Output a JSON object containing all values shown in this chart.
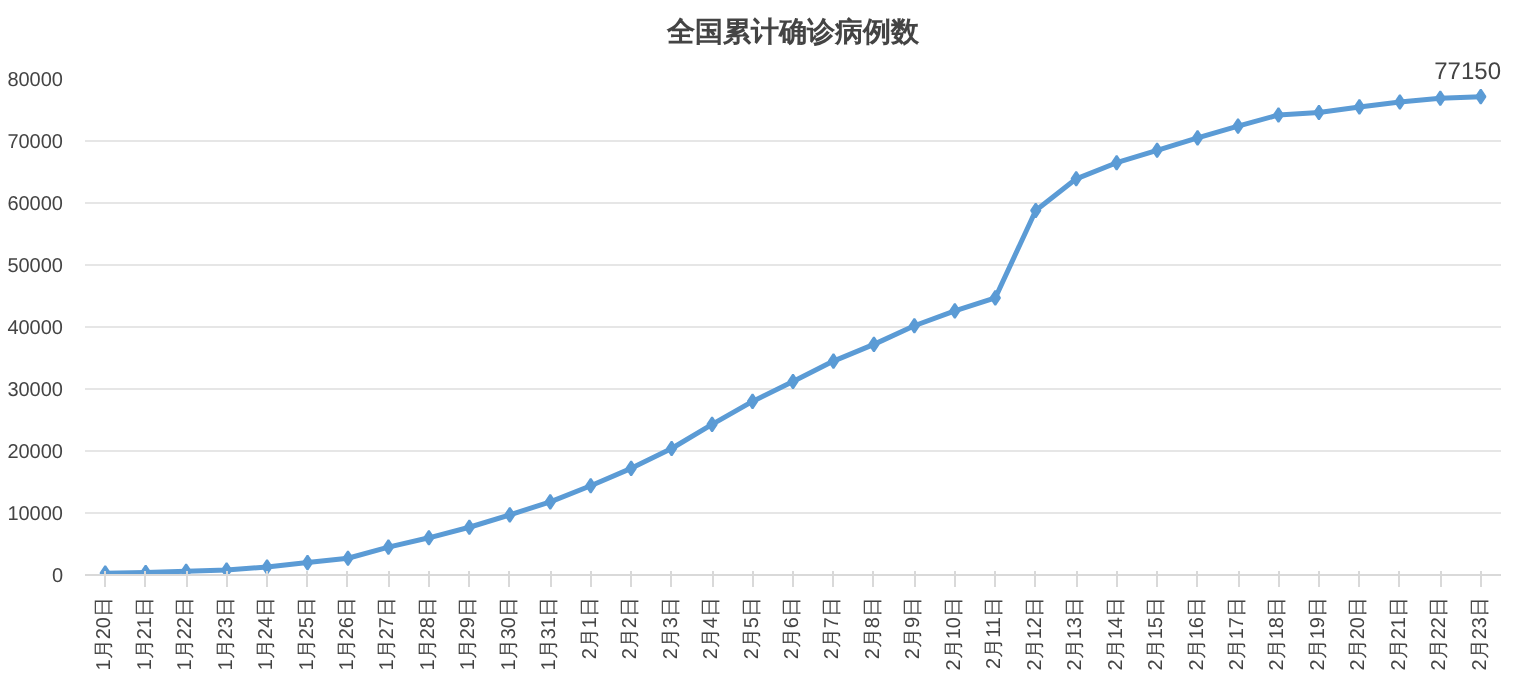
{
  "chart_data": {
    "type": "line",
    "title": "全国累计确诊病例数",
    "categories": [
      "1月20日",
      "1月21日",
      "1月22日",
      "1月23日",
      "1月24日",
      "1月25日",
      "1月26日",
      "1月27日",
      "1月28日",
      "1月29日",
      "1月30日",
      "1月31日",
      "2月1日",
      "2月2日",
      "2月3日",
      "2月4日",
      "2月5日",
      "2月6日",
      "2月7日",
      "2月8日",
      "2月9日",
      "2月10日",
      "2月11日",
      "2月12日",
      "2月13日",
      "2月14日",
      "2月15日",
      "2月16日",
      "2月17日",
      "2月18日",
      "2月19日",
      "2月20日",
      "2月21日",
      "2月22日",
      "2月23日"
    ],
    "series": [
      {
        "color": "#5b9bd5",
        "values": [
          300,
          400,
          600,
          800,
          1300,
          2000,
          2700,
          4500,
          6000,
          7700,
          9700,
          11800,
          14400,
          17200,
          20400,
          24300,
          28000,
          31200,
          34500,
          37200,
          40200,
          42600,
          44700,
          58800,
          63900,
          66500,
          68500,
          70500,
          72400,
          74200,
          74600,
          75500,
          76300,
          76900,
          77150
        ],
        "value_labels": [
          null,
          null,
          null,
          null,
          null,
          null,
          null,
          null,
          null,
          null,
          null,
          null,
          null,
          null,
          null,
          null,
          null,
          null,
          null,
          null,
          null,
          null,
          null,
          null,
          null,
          null,
          null,
          null,
          null,
          null,
          null,
          null,
          null,
          null,
          "77150"
        ]
      }
    ],
    "ylim": [
      0,
      80000
    ],
    "yticks": [
      0,
      10000,
      20000,
      30000,
      40000,
      50000,
      60000,
      70000,
      80000
    ],
    "grid": "y",
    "marker": "diamond",
    "line_style": "solid"
  }
}
